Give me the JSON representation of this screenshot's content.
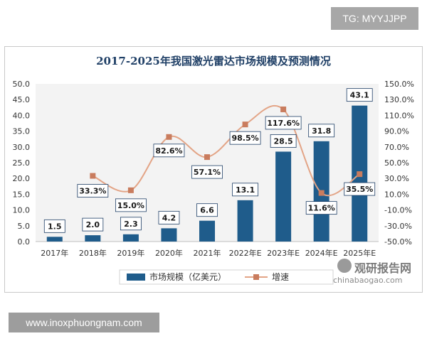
{
  "watermark_top": "TG: MYYJJPP",
  "watermark_bottom": "www.inoxphuongnam.com",
  "brand": {
    "cn": "观研报告网",
    "en": "chinabaogao.com"
  },
  "colors": {
    "bar": "#1f5c8b",
    "line": "#e3a486",
    "marker": "#c97c5e",
    "grid": "#d9d9d9"
  },
  "chart_data": {
    "type": "bar",
    "title": "2017-2025年我国激光雷达市场规模及预测情况",
    "categories": [
      "2017年",
      "2018年",
      "2019年",
      "2020年",
      "2021年",
      "2022年E",
      "2023年E",
      "2024年E",
      "2025年E"
    ],
    "series": [
      {
        "name": "市场规模（亿美元）",
        "type": "bar",
        "axis": "left",
        "values": [
          1.5,
          2.0,
          2.3,
          4.2,
          6.6,
          13.1,
          28.5,
          31.8,
          43.1
        ],
        "labels": [
          "1.5",
          "2.0",
          "2.3",
          "4.2",
          "6.6",
          "13.1",
          "28.5",
          "31.8",
          "43.1"
        ]
      },
      {
        "name": "增速",
        "type": "line",
        "axis": "right",
        "values": [
          null,
          33.3,
          15.0,
          82.6,
          57.1,
          98.5,
          117.6,
          11.6,
          35.5
        ],
        "labels": [
          "",
          "33.3%",
          "15.0%",
          "82.6%",
          "57.1%",
          "98.5%",
          "117.6%",
          "11.6%",
          "35.5%"
        ]
      }
    ],
    "y_left": {
      "min": 0,
      "max": 50,
      "step": 5,
      "ticks": [
        "0.0",
        "5.0",
        "10.0",
        "15.0",
        "20.0",
        "25.0",
        "30.0",
        "35.0",
        "40.0",
        "45.0",
        "50.0"
      ]
    },
    "y_right": {
      "min": -50,
      "max": 150,
      "step": 20,
      "ticks": [
        "-50.0%",
        "-30.0%",
        "-10.0%",
        "10.0%",
        "30.0%",
        "50.0%",
        "70.0%",
        "90.0%",
        "110.0%",
        "130.0%",
        "150.0%"
      ]
    },
    "grid": false,
    "legend": "bottom"
  }
}
